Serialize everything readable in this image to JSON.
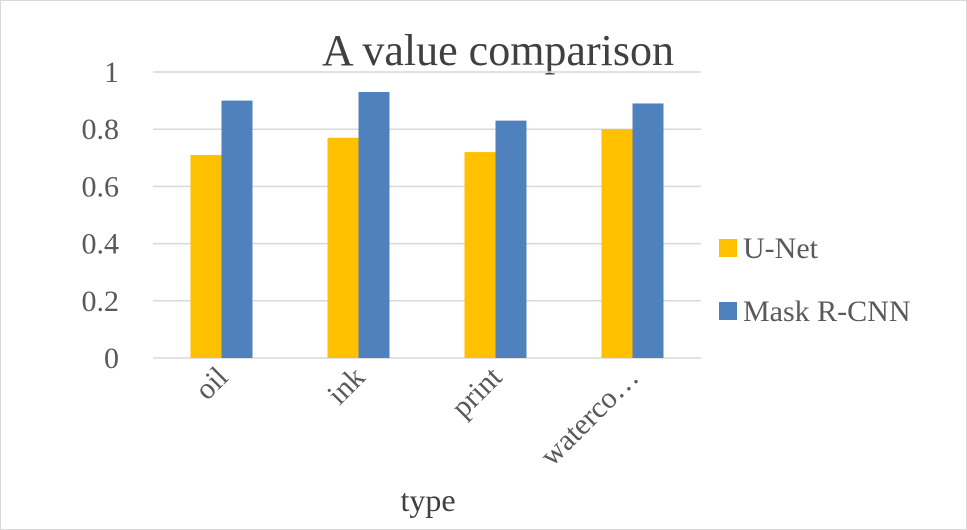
{
  "chart_data": {
    "type": "bar",
    "title": "A value comparison",
    "xlabel": "type",
    "ylabel": "",
    "categories": [
      "oil",
      "ink",
      "print",
      "waterco…"
    ],
    "series": [
      {
        "name": "U-Net",
        "values": [
          0.71,
          0.77,
          0.72,
          0.8
        ],
        "color": "#FFC000"
      },
      {
        "name": "Mask R-CNN",
        "values": [
          0.9,
          0.93,
          0.83,
          0.89
        ],
        "color": "#4F81BD"
      }
    ],
    "ylim": [
      0,
      1
    ],
    "yticks": [
      "0",
      "0.2",
      "0.4",
      "0.6",
      "0.8",
      "1"
    ],
    "grid": true,
    "legend": "right"
  }
}
